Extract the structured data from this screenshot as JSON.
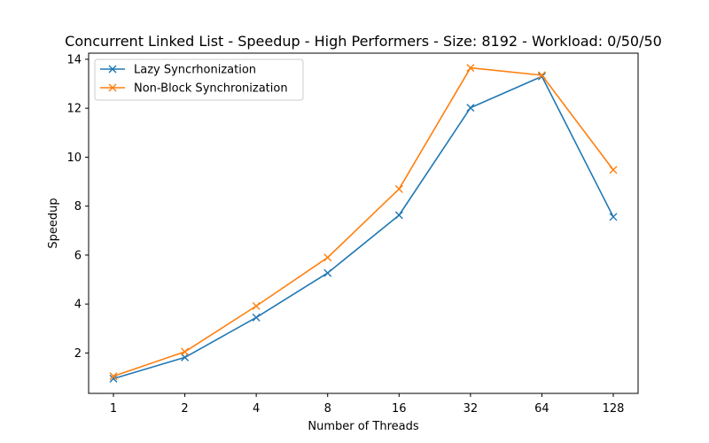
{
  "chart_data": {
    "type": "line",
    "title": "Concurrent Linked List - Speedup - High Performers - Size: 8192 - Workload: 0/50/50",
    "xlabel": "Number of Threads",
    "ylabel": "Speedup",
    "categories": [
      "1",
      "2",
      "4",
      "8",
      "16",
      "32",
      "64",
      "128"
    ],
    "yticks": [
      "2",
      "4",
      "6",
      "8",
      "10",
      "12",
      "14"
    ],
    "ylim": [
      0.35,
      14.25
    ],
    "grid": false,
    "legend_position": "upper-left",
    "series": [
      {
        "name": "Lazy Syncrhonization",
        "color": "#1f77b4",
        "marker": "x",
        "values": [
          0.95,
          1.82,
          3.45,
          5.27,
          7.63,
          12.02,
          13.3,
          7.56
        ]
      },
      {
        "name": "Non-Block Synchronization",
        "color": "#ff7f0e",
        "marker": "x",
        "values": [
          1.05,
          2.05,
          3.92,
          5.9,
          8.7,
          13.65,
          13.35,
          9.48
        ]
      }
    ]
  }
}
